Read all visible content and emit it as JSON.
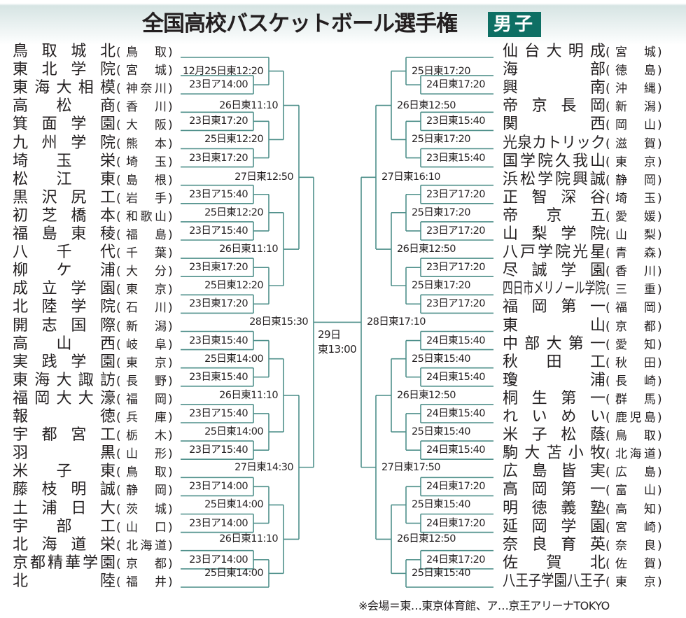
{
  "title": "全国高校バスケットボール選手権",
  "badge": "男子",
  "colors": {
    "accent": "#0e6f64",
    "bracket_line": "#4e8f8a",
    "text": "#231f20"
  },
  "left": {
    "teams": [
      {
        "name": "鳥取城北",
        "pref": "鳥取"
      },
      {
        "name": "東北学院",
        "pref": "宮城"
      },
      {
        "name": "東海大相模",
        "pref": "神奈川"
      },
      {
        "name": "高松商",
        "pref": "香川"
      },
      {
        "name": "箕面学園",
        "pref": "大阪"
      },
      {
        "name": "九州学院",
        "pref": "熊本"
      },
      {
        "name": "埼玉栄",
        "pref": "埼玉"
      },
      {
        "name": "松江東",
        "pref": "島根"
      },
      {
        "name": "黒沢尻工",
        "pref": "岩手"
      },
      {
        "name": "初芝橋本",
        "pref": "和歌山"
      },
      {
        "name": "福島東稜",
        "pref": "福島"
      },
      {
        "name": "八千代",
        "pref": "千葉"
      },
      {
        "name": "柳ケ浦",
        "pref": "大分"
      },
      {
        "name": "成立学園",
        "pref": "東京"
      },
      {
        "name": "北陸学院",
        "pref": "石川"
      },
      {
        "name": "開志国際",
        "pref": "新潟"
      },
      {
        "name": "高山西",
        "pref": "岐阜"
      },
      {
        "name": "実践学園",
        "pref": "東京"
      },
      {
        "name": "東海大諏訪",
        "pref": "長野"
      },
      {
        "name": "福岡大大濠",
        "pref": "福岡"
      },
      {
        "name": "報徳",
        "pref": "兵庫"
      },
      {
        "name": "宇都宮工",
        "pref": "栃木"
      },
      {
        "name": "羽黒",
        "pref": "山形"
      },
      {
        "name": "米子東",
        "pref": "鳥取"
      },
      {
        "name": "藤枝明誠",
        "pref": "静岡"
      },
      {
        "name": "土浦日大",
        "pref": "茨城"
      },
      {
        "name": "宇部工",
        "pref": "山口"
      },
      {
        "name": "北海道栄",
        "pref": "北海道"
      },
      {
        "name": "京都精華学園",
        "pref": "京都"
      },
      {
        "name": "北陸",
        "pref": "福井"
      }
    ],
    "bracket": {
      "label": "28日東15:30",
      "children": [
        {
          "label": "27日東12:50",
          "children": [
            {
              "label": "26日東11:10",
              "children": [
                {
                  "label": "12月25日東12:20",
                  "children": [
                    0,
                    {
                      "label": "23日ア14:00",
                      "children": [
                        1,
                        2
                      ]
                    }
                  ]
                },
                {
                  "label": "25日東12:20",
                  "children": [
                    {
                      "label": "23日東17:20",
                      "children": [
                        3,
                        4
                      ]
                    },
                    {
                      "label": "23日東17:20",
                      "children": [
                        5,
                        6
                      ]
                    }
                  ]
                }
              ]
            },
            {
              "label": "26日東11:10",
              "children": [
                {
                  "label": "25日東12:20",
                  "children": [
                    {
                      "label": "23日ア15:40",
                      "children": [
                        7,
                        8
                      ]
                    },
                    {
                      "label": "23日ア15:40",
                      "children": [
                        9,
                        10
                      ]
                    }
                  ]
                },
                {
                  "label": "25日東12:20",
                  "children": [
                    {
                      "label": "23日東17:20",
                      "children": [
                        11,
                        12
                      ]
                    },
                    {
                      "label": "23日東17:20",
                      "children": [
                        13,
                        14
                      ]
                    }
                  ]
                }
              ]
            }
          ]
        },
        {
          "label": "27日東14:30",
          "children": [
            {
              "label": "26日東11:10",
              "children": [
                {
                  "label": "25日東14:00",
                  "children": [
                    {
                      "label": "23日東15:40",
                      "children": [
                        15,
                        16
                      ]
                    },
                    {
                      "label": "23日東15:40",
                      "children": [
                        17,
                        18
                      ]
                    }
                  ]
                },
                {
                  "label": "25日東14:00",
                  "children": [
                    {
                      "label": "23日ア15:40",
                      "children": [
                        19,
                        20
                      ]
                    },
                    {
                      "label": "23日ア15:40",
                      "children": [
                        21,
                        22
                      ]
                    }
                  ]
                }
              ]
            },
            {
              "label": "26日東11:10",
              "children": [
                {
                  "label": "25日東14:00",
                  "children": [
                    {
                      "label": "23日ア14:00",
                      "children": [
                        23,
                        24
                      ]
                    },
                    {
                      "label": "23日ア14:00",
                      "children": [
                        25,
                        26
                      ]
                    }
                  ]
                },
                {
                  "label": "25日東14:00",
                  "children": [
                    {
                      "label": "23日ア14:00",
                      "children": [
                        27,
                        28
                      ]
                    },
                    29
                  ]
                }
              ]
            }
          ]
        }
      ]
    }
  },
  "right": {
    "teams": [
      {
        "name": "仙台大明成",
        "pref": "宮城"
      },
      {
        "name": "海部",
        "pref": "徳島"
      },
      {
        "name": "興南",
        "pref": "沖縄"
      },
      {
        "name": "帝京長岡",
        "pref": "新潟"
      },
      {
        "name": "関西",
        "pref": "岡山"
      },
      {
        "name": "光泉カトリック",
        "pref": "滋賀"
      },
      {
        "name": "国学院久我山",
        "pref": "東京"
      },
      {
        "name": "浜松学院興誠",
        "pref": "静岡"
      },
      {
        "name": "正智深谷",
        "pref": "埼玉"
      },
      {
        "name": "帝京五",
        "pref": "愛媛"
      },
      {
        "name": "山梨学院",
        "pref": "山梨"
      },
      {
        "name": "八戸学院光星",
        "pref": "青森"
      },
      {
        "name": "尽誠学園",
        "pref": "香川"
      },
      {
        "name": "四日市メリノール学院",
        "pref": "三重"
      },
      {
        "name": "福岡第一",
        "pref": "福岡"
      },
      {
        "name": "東山",
        "pref": "京都"
      },
      {
        "name": "中部大第一",
        "pref": "愛知"
      },
      {
        "name": "秋田工",
        "pref": "秋田"
      },
      {
        "name": "瓊浦",
        "pref": "長崎"
      },
      {
        "name": "桐生第一",
        "pref": "群馬"
      },
      {
        "name": "れいめい",
        "pref": "鹿児島"
      },
      {
        "name": "米子松蔭",
        "pref": "鳥取"
      },
      {
        "name": "駒大苫小牧",
        "pref": "北海道"
      },
      {
        "name": "広島皆実",
        "pref": "広島"
      },
      {
        "name": "高岡第一",
        "pref": "富山"
      },
      {
        "name": "明徳義塾",
        "pref": "高知"
      },
      {
        "name": "延岡学園",
        "pref": "宮崎"
      },
      {
        "name": "奈良育英",
        "pref": "奈良"
      },
      {
        "name": "佐賀北",
        "pref": "佐賀"
      },
      {
        "name": "八王子学園八王子",
        "pref": "東京"
      }
    ],
    "bracket": {
      "label": "28日東17:10",
      "children": [
        {
          "label": "27日東16:10",
          "children": [
            {
              "label": "26日東12:50",
              "children": [
                {
                  "label": "25日東17:20",
                  "children": [
                    0,
                    {
                      "label": "24日東17:20",
                      "children": [
                        1,
                        2
                      ]
                    }
                  ]
                },
                {
                  "label": "25日東17:20",
                  "children": [
                    {
                      "label": "23日東15:40",
                      "children": [
                        3,
                        4
                      ]
                    },
                    {
                      "label": "23日東15:40",
                      "children": [
                        5,
                        6
                      ]
                    }
                  ]
                }
              ]
            },
            {
              "label": "26日東12:50",
              "children": [
                {
                  "label": "25日東17:20",
                  "children": [
                    {
                      "label": "23日ア17:20",
                      "children": [
                        7,
                        8
                      ]
                    },
                    {
                      "label": "23日ア17:20",
                      "children": [
                        9,
                        10
                      ]
                    }
                  ]
                },
                {
                  "label": "25日東17:20",
                  "children": [
                    {
                      "label": "23日ア17:20",
                      "children": [
                        11,
                        12
                      ]
                    },
                    {
                      "label": "23日ア17:20",
                      "children": [
                        13,
                        14
                      ]
                    }
                  ]
                }
              ]
            }
          ]
        },
        {
          "label": "27日東17:50",
          "children": [
            {
              "label": "26日東12:50",
              "children": [
                {
                  "label": "25日東15:40",
                  "children": [
                    {
                      "label": "24日東15:40",
                      "children": [
                        15,
                        16
                      ]
                    },
                    {
                      "label": "24日東15:40",
                      "children": [
                        17,
                        18
                      ]
                    }
                  ]
                },
                {
                  "label": "25日東15:40",
                  "children": [
                    {
                      "label": "24日東15:40",
                      "children": [
                        19,
                        20
                      ]
                    },
                    {
                      "label": "24日東15:40",
                      "children": [
                        21,
                        22
                      ]
                    }
                  ]
                }
              ]
            },
            {
              "label": "26日東12:50",
              "children": [
                {
                  "label": "25日東15:40",
                  "children": [
                    {
                      "label": "24日東17:20",
                      "children": [
                        23,
                        24
                      ]
                    },
                    {
                      "label": "24日東17:20",
                      "children": [
                        25,
                        26
                      ]
                    }
                  ]
                },
                {
                  "label": "25日東15:40",
                  "children": [
                    {
                      "label": "24日東17:20",
                      "children": [
                        27,
                        28
                      ]
                    },
                    29
                  ]
                }
              ]
            }
          ]
        }
      ]
    }
  },
  "final": {
    "date": "29日",
    "time": "東13:00"
  },
  "footnote": "※会場＝東…東京体育館、ア…京王アリーナTOKYO"
}
